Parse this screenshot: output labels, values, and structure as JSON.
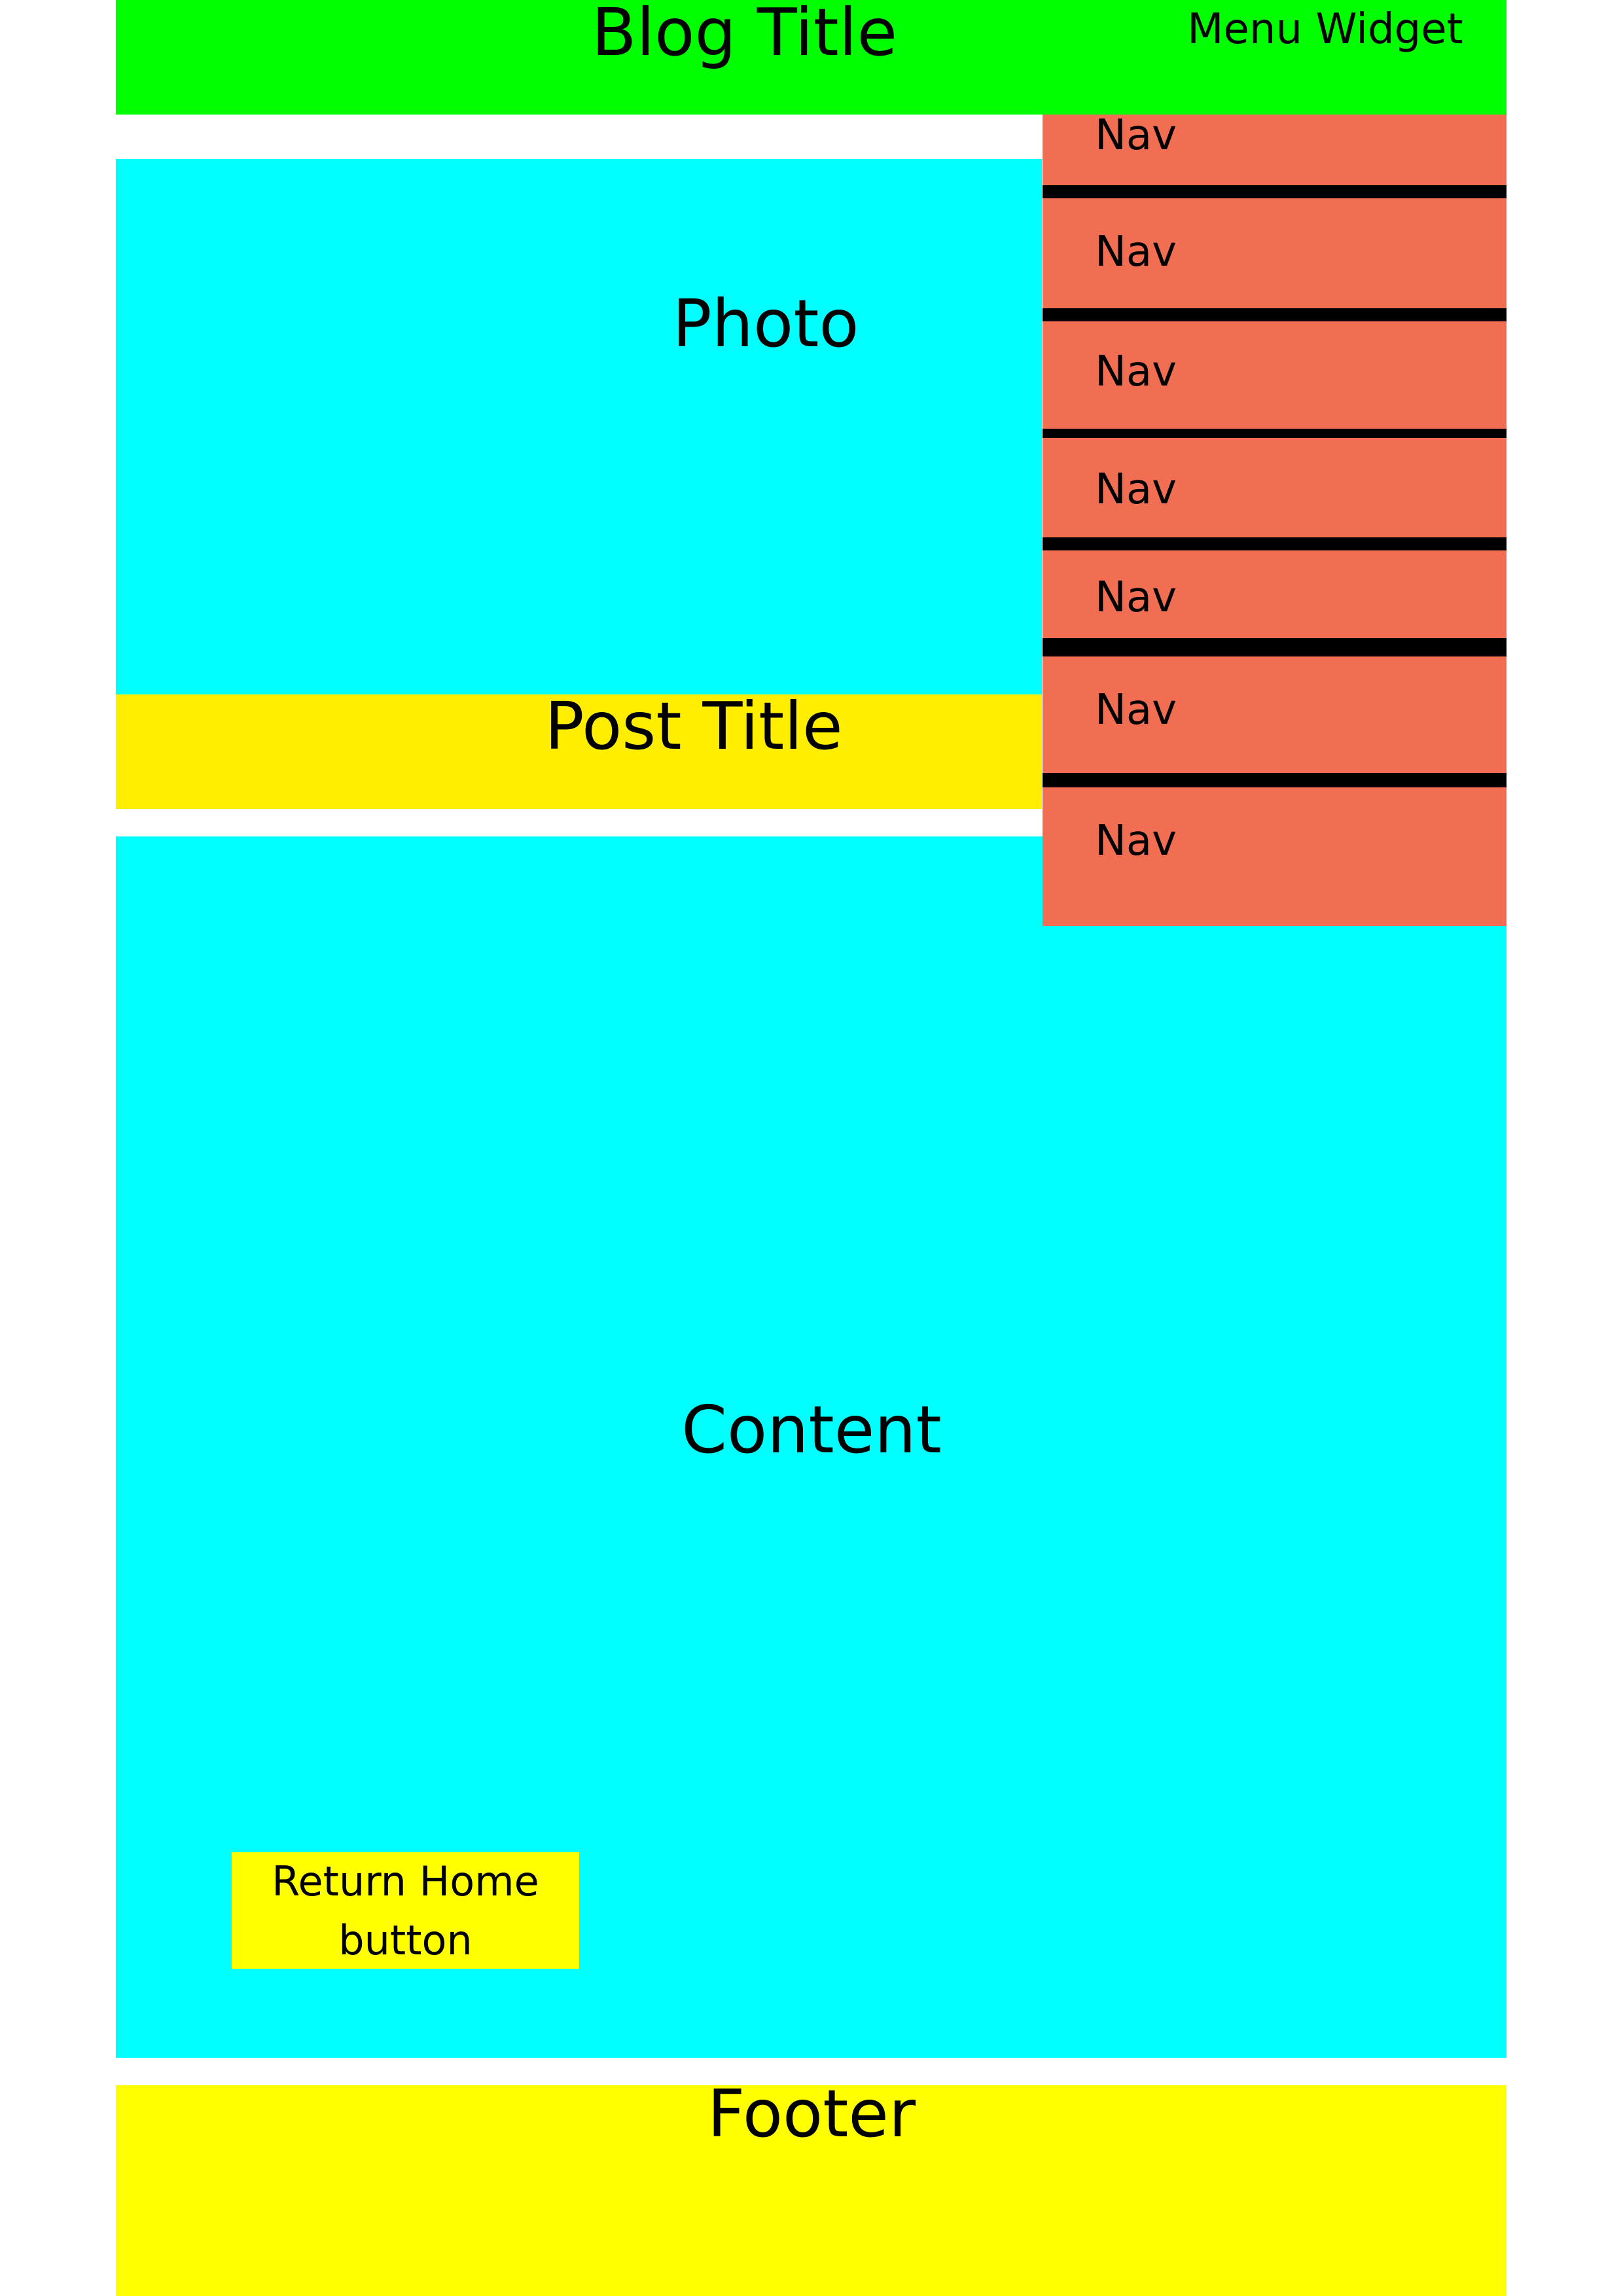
{
  "colors": {
    "header": "#00ff00",
    "photo": "#00ffff",
    "post_title": "#ffee00",
    "content": "#00ffff",
    "return_home": "#ffff00",
    "footer": "#ffff00",
    "nav": "#f26e52",
    "divider": "#000000"
  },
  "header": {
    "title": "Blog Title",
    "menu_widget": "Menu Widget"
  },
  "photo": {
    "label": "Photo"
  },
  "post_title": {
    "label": "Post Title"
  },
  "content": {
    "label": "Content"
  },
  "return_home": {
    "label": "Return Home button"
  },
  "footer": {
    "label": "Footer"
  },
  "nav": {
    "items": [
      {
        "label": "Nav"
      },
      {
        "label": "Nav"
      },
      {
        "label": "Nav"
      },
      {
        "label": "Nav"
      },
      {
        "label": "Nav"
      },
      {
        "label": "Nav"
      },
      {
        "label": "Nav"
      }
    ]
  }
}
